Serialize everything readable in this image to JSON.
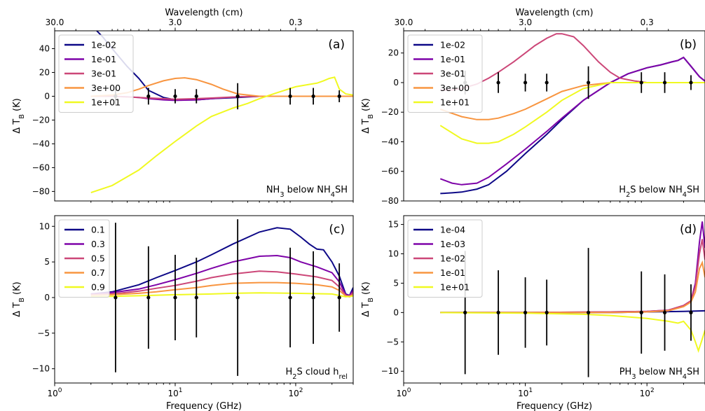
{
  "chart_data": [
    {
      "type": "line",
      "panel": "(a)",
      "annotation": "NH₃ below NH₄SH",
      "top_axis": {
        "label": "Wavelength (cm)",
        "ticks": [
          "30.0",
          "3.0",
          "0.3"
        ],
        "values_cm": [
          30.0,
          3.0,
          0.3
        ]
      },
      "xlabel": "",
      "xscale": "log",
      "xlim": [
        1,
        300
      ],
      "x_ticks": [],
      "ylabel": "Δ T_B (K)",
      "ylim": [
        -88,
        55
      ],
      "y_ticks": [
        -80,
        -60,
        -40,
        -20,
        0,
        20,
        40
      ],
      "legend_loc": "upper left",
      "grid": false,
      "series": [
        {
          "name": "1e-02",
          "color": "#0d0887",
          "x": [
            2,
            2.5,
            3,
            4,
            5,
            6,
            8,
            10,
            15,
            20,
            33,
            50,
            100,
            150,
            200,
            250,
            300
          ],
          "y": [
            60,
            50,
            40,
            25,
            15,
            5,
            -1,
            -3,
            -3,
            -2,
            -1,
            0,
            0,
            0,
            0,
            0,
            0
          ]
        },
        {
          "name": "1e-01",
          "color": "#7e03a8",
          "x": [
            2,
            3,
            4,
            5,
            6,
            8,
            10,
            15,
            20,
            33,
            50,
            100,
            200,
            300
          ],
          "y": [
            0,
            0,
            -0.5,
            -1,
            -2,
            -3,
            -3.5,
            -3,
            -2,
            -0.5,
            0,
            0,
            0,
            0
          ]
        },
        {
          "name": "3e-01",
          "color": "#cc4778",
          "x": [
            2,
            3,
            5,
            8,
            10,
            15,
            20,
            33,
            50,
            100,
            200,
            300
          ],
          "y": [
            0,
            0,
            -1,
            -2,
            -2.5,
            -2,
            -1.5,
            -0.5,
            0,
            0,
            0,
            0
          ]
        },
        {
          "name": "3e+00",
          "color": "#f89540",
          "x": [
            2,
            3,
            4,
            5,
            6,
            8,
            10,
            12,
            15,
            20,
            25,
            33,
            50,
            100,
            200,
            300
          ],
          "y": [
            0,
            1,
            3,
            6,
            9,
            13,
            15,
            15.5,
            14,
            10,
            6,
            2,
            0,
            0,
            0,
            0
          ]
        },
        {
          "name": "1e+01",
          "color": "#f0f921",
          "x": [
            2,
            3,
            5,
            7,
            10,
            15,
            20,
            30,
            40,
            50,
            70,
            100,
            130,
            150,
            170,
            190,
            210,
            230,
            260,
            300
          ],
          "y": [
            -81,
            -75,
            -62,
            -50,
            -38,
            -25,
            -17,
            -10,
            -6,
            -2,
            3,
            8,
            10,
            11,
            13,
            15,
            16,
            6,
            2,
            1
          ]
        }
      ],
      "errorbars": {
        "color": "#000000",
        "x": [
          3.2,
          6,
          10,
          15,
          33,
          90,
          140,
          230
        ],
        "y": [
          0,
          0,
          0,
          0,
          0,
          0,
          0,
          0
        ],
        "err": [
          8,
          7,
          6,
          6,
          11,
          7,
          7,
          5
        ]
      }
    },
    {
      "type": "line",
      "panel": "(b)",
      "annotation": "H₂S below NH₄SH",
      "top_axis": {
        "label": "Wavelength (cm)",
        "ticks": [
          "30.0",
          "3.0",
          "0.3"
        ],
        "values_cm": [
          30.0,
          3.0,
          0.3
        ]
      },
      "xlabel": "",
      "xscale": "log",
      "xlim": [
        1,
        300
      ],
      "x_ticks": [],
      "ylabel": "Δ T_B (K)",
      "ylim": [
        -80,
        35
      ],
      "y_ticks": [
        -80,
        -60,
        -40,
        -20,
        0,
        20
      ],
      "legend_loc": "upper left",
      "grid": false,
      "series": [
        {
          "name": "1e-02",
          "color": "#0d0887",
          "x": [
            2,
            2.5,
            3,
            4,
            5,
            7,
            10,
            15,
            20,
            30,
            50,
            70,
            100,
            130,
            160,
            180,
            200,
            230,
            270,
            300
          ],
          "y": [
            -75,
            -74.5,
            -74,
            -72,
            -69,
            -60,
            -48,
            -35,
            -25,
            -12,
            0,
            6,
            10,
            12,
            14,
            15,
            17,
            11,
            4,
            1
          ]
        },
        {
          "name": "1e-01",
          "color": "#7e03a8",
          "x": [
            2,
            2.5,
            3,
            4,
            5,
            7,
            10,
            15,
            20,
            30,
            50,
            70,
            100,
            130,
            160,
            180,
            200,
            230,
            270,
            300
          ],
          "y": [
            -65,
            -68,
            -69,
            -68,
            -64,
            -55,
            -45,
            -33,
            -24,
            -12,
            0,
            6,
            10,
            12,
            14,
            15,
            17,
            11,
            4,
            1
          ]
        },
        {
          "name": "3e-01",
          "color": "#cc4778",
          "x": [
            2,
            2.5,
            3,
            4,
            5,
            6,
            8,
            10,
            12,
            15,
            18,
            20,
            25,
            30,
            40,
            50,
            60,
            80,
            100,
            200,
            300
          ],
          "y": [
            -5,
            -5,
            -4,
            -1,
            3,
            7,
            14,
            20,
            25,
            30,
            33,
            33,
            31,
            25,
            14,
            7,
            3,
            1,
            0,
            0,
            0
          ]
        },
        {
          "name": "3e+00",
          "color": "#f89540",
          "x": [
            2,
            3,
            4,
            5,
            6,
            8,
            10,
            15,
            20,
            30,
            50,
            100,
            300
          ],
          "y": [
            -18,
            -23,
            -25,
            -25,
            -24,
            -21,
            -18,
            -11,
            -6,
            -2,
            0,
            0,
            0
          ]
        },
        {
          "name": "1e+01",
          "color": "#f0f921",
          "x": [
            2,
            3,
            4,
            5,
            6,
            8,
            10,
            15,
            20,
            30,
            50,
            100,
            300
          ],
          "y": [
            -29,
            -38,
            -41,
            -41,
            -40,
            -35,
            -30,
            -20,
            -12,
            -4,
            0,
            0,
            0
          ]
        }
      ],
      "errorbars": {
        "color": "#000000",
        "x": [
          3.2,
          6,
          10,
          15,
          33,
          90,
          140,
          230
        ],
        "y": [
          0,
          0,
          0,
          0,
          0,
          0,
          0,
          0
        ],
        "err": [
          8,
          7,
          6,
          6,
          11,
          7,
          7,
          5
        ]
      }
    },
    {
      "type": "line",
      "panel": "(c)",
      "annotation": "H₂S cloud h_rel",
      "xlabel": "Frequency (GHz)",
      "xscale": "log",
      "xlim": [
        1,
        300
      ],
      "x_ticks": [
        1,
        10,
        100
      ],
      "x_tick_labels": [
        "10^0",
        "10^1",
        "10^2"
      ],
      "ylabel": "Δ T_B (K)",
      "ylim": [
        -12,
        11.5
      ],
      "y_ticks": [
        -10,
        -5,
        0,
        5,
        10
      ],
      "legend_loc": "upper left",
      "grid": false,
      "series": [
        {
          "name": "0.1",
          "color": "#0d0887",
          "x": [
            2,
            3,
            5,
            7,
            10,
            15,
            20,
            30,
            50,
            70,
            90,
            110,
            130,
            150,
            170,
            200,
            230,
            260,
            280,
            300
          ],
          "y": [
            0.5,
            0.8,
            1.8,
            2.8,
            3.8,
            5,
            6,
            7.5,
            9.2,
            9.8,
            9.6,
            8.5,
            7.5,
            6.8,
            6.7,
            5,
            3,
            0.5,
            0.3,
            1.4
          ]
        },
        {
          "name": "0.3",
          "color": "#7e03a8",
          "x": [
            2,
            3,
            5,
            7,
            10,
            15,
            20,
            30,
            50,
            70,
            90,
            110,
            150,
            200,
            230,
            260,
            280,
            300
          ],
          "y": [
            0.5,
            0.7,
            1.2,
            1.8,
            2.5,
            3.4,
            4.1,
            5,
            5.8,
            5.9,
            5.6,
            5,
            4.3,
            3.5,
            2.2,
            0.4,
            0.3,
            1
          ]
        },
        {
          "name": "0.5",
          "color": "#cc4778",
          "x": [
            2,
            3,
            5,
            7,
            10,
            15,
            20,
            30,
            50,
            70,
            100,
            150,
            200,
            230,
            260,
            280,
            300
          ],
          "y": [
            0.4,
            0.5,
            0.9,
            1.3,
            1.7,
            2.3,
            2.8,
            3.3,
            3.7,
            3.6,
            3.3,
            2.9,
            2.4,
            1.5,
            0.3,
            0.2,
            0.7
          ]
        },
        {
          "name": "0.7",
          "color": "#f89540",
          "x": [
            2,
            3,
            5,
            7,
            10,
            15,
            20,
            30,
            50,
            70,
            100,
            150,
            200,
            230,
            260,
            280,
            300
          ],
          "y": [
            0.3,
            0.4,
            0.6,
            0.8,
            1.1,
            1.4,
            1.7,
            2,
            2.1,
            2.1,
            2,
            1.8,
            1.5,
            1,
            0.2,
            0.1,
            0.4
          ]
        },
        {
          "name": "0.9",
          "color": "#f0f921",
          "x": [
            2,
            5,
            10,
            20,
            30,
            50,
            100,
            200,
            260,
            300
          ],
          "y": [
            0.1,
            0.25,
            0.4,
            0.5,
            0.6,
            0.65,
            0.6,
            0.5,
            0.1,
            0.2
          ]
        }
      ],
      "errorbars": {
        "color": "#000000",
        "x": [
          3.2,
          6,
          10,
          15,
          33,
          90,
          140,
          230
        ],
        "y": [
          0,
          0,
          0,
          0,
          0,
          0,
          0,
          0
        ],
        "err": [
          10.5,
          7.2,
          6,
          5.6,
          11,
          7,
          6.5,
          4.8
        ]
      }
    },
    {
      "type": "line",
      "panel": "(d)",
      "annotation": "PH₃ below NH₄SH",
      "xlabel": "Frequency (GHz)",
      "xscale": "log",
      "xlim": [
        1,
        300
      ],
      "x_ticks": [
        1,
        10,
        100
      ],
      "x_tick_labels": [
        "10^0",
        "10^1",
        "10^2"
      ],
      "ylabel": "Δ T_B (K)",
      "ylim": [
        -12,
        16.5
      ],
      "y_ticks": [
        -10,
        -5,
        0,
        5,
        10,
        15
      ],
      "legend_loc": "upper left",
      "grid": false,
      "series": [
        {
          "name": "1e-04",
          "color": "#0d0887",
          "x": [
            2,
            10,
            50,
            100,
            200,
            300
          ],
          "y": [
            0,
            0,
            0,
            0.1,
            0.2,
            0.3
          ]
        },
        {
          "name": "1e-03",
          "color": "#7e03a8",
          "x": [
            2,
            10,
            50,
            100,
            150,
            200,
            230,
            250,
            270,
            285,
            300
          ],
          "y": [
            0,
            0,
            0.1,
            0.2,
            0.4,
            1.2,
            2,
            5,
            12,
            15.5,
            11
          ]
        },
        {
          "name": "1e-02",
          "color": "#cc4778",
          "x": [
            2,
            10,
            50,
            100,
            150,
            200,
            230,
            250,
            270,
            285,
            300
          ],
          "y": [
            0,
            0,
            0.1,
            0.2,
            0.4,
            1.2,
            2,
            4.5,
            10,
            12.5,
            9
          ]
        },
        {
          "name": "1e-01",
          "color": "#f89540",
          "x": [
            2,
            10,
            50,
            100,
            150,
            200,
            230,
            250,
            270,
            285,
            300
          ],
          "y": [
            0,
            0,
            0,
            0.1,
            0.3,
            1,
            1.8,
            3.5,
            7.5,
            8.5,
            6
          ]
        },
        {
          "name": "1e+01",
          "color": "#f0f921",
          "x": [
            2,
            10,
            30,
            50,
            100,
            150,
            180,
            200,
            230,
            250,
            265,
            280,
            300
          ],
          "y": [
            0,
            -0.1,
            -0.3,
            -0.5,
            -1,
            -1.5,
            -1.8,
            -1.5,
            -3,
            -5,
            -6.5,
            -5,
            -3
          ]
        }
      ],
      "errorbars": {
        "color": "#000000",
        "x": [
          3.2,
          6,
          10,
          15,
          33,
          90,
          140,
          230
        ],
        "y": [
          0,
          0,
          0,
          0,
          0,
          0,
          0,
          0
        ],
        "err": [
          10.5,
          7.2,
          6,
          5.6,
          11,
          7,
          6.5,
          4.8
        ]
      }
    }
  ]
}
